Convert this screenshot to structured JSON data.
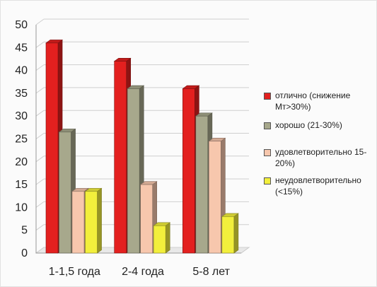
{
  "chart_data": {
    "type": "bar",
    "categories": [
      "1-1,5 года",
      "2-4 года",
      "5-8 лет"
    ],
    "series": [
      {
        "name": "отлично (снижение Мт>30%)",
        "color": "#e3201f",
        "values": [
          46,
          42,
          36
        ]
      },
      {
        "name": "хорошо (21-30%)",
        "color": "#a7a88c",
        "values": [
          26.5,
          36,
          30
        ]
      },
      {
        "name": "удовлетворительно 15-20%)",
        "color": "#f7c7ad",
        "values": [
          13.5,
          15,
          24.5
        ]
      },
      {
        "name": "неудовлетворительно (<15%)",
        "color": "#f2ef3c",
        "values": [
          13.5,
          6,
          8
        ]
      }
    ],
    "yticks": [
      0,
      5,
      10,
      15,
      20,
      25,
      30,
      35,
      40,
      45,
      50
    ],
    "ylim": [
      0,
      50
    ],
    "grid": true,
    "legend_position": "right"
  }
}
